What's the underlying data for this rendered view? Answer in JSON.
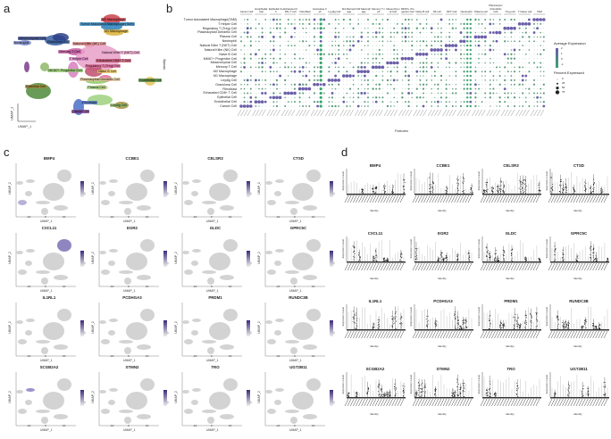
{
  "panel_labels": {
    "a": "a",
    "b": "b",
    "c": "c",
    "d": "d"
  },
  "panel_a": {
    "x_axis": "UMAP_1",
    "y_axis": "UMAP_2",
    "clusters": [
      {
        "label": "M2 Macrophage",
        "color": "#c9444d"
      },
      {
        "label": "Tumor Associated Macrophage(TAM)",
        "color": "#2a7fb8"
      },
      {
        "label": "Granulosa Cell",
        "color": "#3a5f9e"
      },
      {
        "label": "M1 Macrophage",
        "color": "#d9b23c"
      },
      {
        "label": "Neutrophil",
        "color": "#7f8fc9"
      },
      {
        "label": "Mesenchymal Cell",
        "color": "#2b3f86"
      },
      {
        "label": "Natural Killer (NK) Cell",
        "color": "#e08a8a"
      },
      {
        "label": "Memory T Cell",
        "color": "#c35ca3"
      },
      {
        "label": "Natural Killer T (NKT) Cell",
        "color": "#e7a0c8"
      },
      {
        "label": "T Helper Cell",
        "color": "#d77fc0"
      },
      {
        "label": "Exhausted CD8+ T Cell",
        "color": "#c0506e"
      },
      {
        "label": "Regulatory T (Treg) Cell",
        "color": "#e06c9a"
      },
      {
        "label": "MKI67+ Progenitor Cell",
        "color": "#8fc768"
      },
      {
        "label": "Naive B Cell",
        "color": "#e6c25a"
      },
      {
        "label": "Plasmacytoid Dendritic Cell",
        "color": "#e3c79a"
      },
      {
        "label": "Endothelial Cell",
        "color": "#4d8a3a"
      },
      {
        "label": "Plasma Cell",
        "color": "#9fd17f"
      },
      {
        "label": "Epithelial Cell",
        "color": "#a88a3a"
      },
      {
        "label": "Fibroblast",
        "color": "#4a6fc7"
      },
      {
        "label": "Leydig Cell",
        "color": "#8fb86a"
      },
      {
        "label": "Cancer Cell",
        "color": "#7a3c8c"
      }
    ]
  },
  "panel_b": {
    "y_axis": "Identity",
    "x_axis": "Features",
    "rows": [
      "Tumor Associated Macrophage(TAM)",
      "T Helper Cell",
      "Regulatory T (Treg) Cell",
      "Plasmacytoid Dendritic Cell",
      "Plasma Cell",
      "Neutrophil",
      "Natural Killer T (NKT) Cell",
      "Natural Killer (NK) Cell",
      "Naive B Cell",
      "MKI67+ Progenitor Cell",
      "Mesenchymal Cell",
      "Memory T Cell",
      "M2 Macrophage",
      "M1 Macrophage",
      "Leydig Cell",
      "Granulosa Cell",
      "Fibroblast",
      "Exhausted CD8+ T Cell",
      "Epithelial Cell",
      "Endothelial Cell",
      "Cancer Cell"
    ],
    "groups": [
      "Cancer Cell",
      "Endothelial Cell",
      "Epithelial Cell",
      "Exhausted CD8+ T cell",
      "Fibroblast",
      "Granulosa Cell",
      "Leydig Cell",
      "M1 Macrophage",
      "M2 Macrophage",
      "Memory T cell",
      "Mesenchymal Cell",
      "MKI67+ Progenitor Cell",
      "Naive B cell",
      "NK cell",
      "NKT Cell",
      "Neutrophil",
      "Plasma cell",
      "Plasmacytoid Dendritic Cell",
      "Treg cell",
      "T helper cell",
      "TAM"
    ],
    "legend": {
      "color_title": "Average Expression",
      "color_ticks": [
        "2",
        "1",
        "0",
        "-1"
      ],
      "color_high": "#6a5fa8",
      "color_low": "#3aa570",
      "size_title": "Percent Expressed",
      "size_ticks": [
        "0",
        "25",
        "50",
        "75"
      ]
    }
  },
  "genes": [
    "BMP4",
    "CCBE1",
    "CELSR3",
    "CTSD",
    "CXCL11",
    "EGR2",
    "GLDC",
    "GPRC5C",
    "IL1RL1",
    "PCDHGA3",
    "PRDM1",
    "RUNDC3B",
    "SCGB2A2",
    "STMN2",
    "TRO",
    "UGT2B11"
  ],
  "panel_c": {
    "x_axis": "UMAP_1",
    "y_axis": "UMAP_2",
    "x_ticks": [
      "-10",
      "0",
      "10"
    ],
    "y_ticks": [
      "10",
      "0",
      "-10"
    ],
    "low_color": "#d9d9d9",
    "high_color": "#3b2a7a"
  },
  "panel_d": {
    "x_axis": "Identity",
    "y_axis": "Expression Level"
  }
}
